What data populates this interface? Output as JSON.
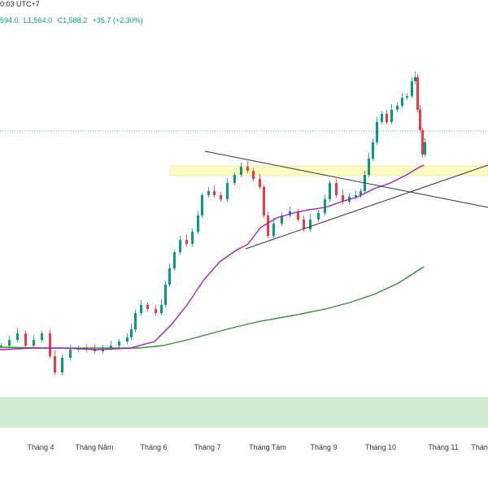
{
  "header": {
    "time_fragment": "0:03 UTC+7",
    "ohlc_high": "594.0",
    "ohlc_low": "L1,564.0",
    "ohlc_close": "C1,588.2",
    "ohlc_change": "+35.7 (+2.30%)"
  },
  "colors": {
    "up": "#089981",
    "down": "#f23645",
    "ma_short": "#9c27b0",
    "ma_long": "#388e3c",
    "supply_zone": "#fff9c4",
    "demand_zone": "#c8e6c9",
    "trendline": "#333333",
    "dotted_level": "#089981"
  },
  "chart_data": {
    "type": "candlestick",
    "x_axis_labels": [
      "Tháng 4",
      "Tháng Năm",
      "Tháng 6",
      "Tháng 7",
      "Tháng Tám",
      "Tháng 9",
      "Tháng 10",
      "Tháng 11",
      "Tháng"
    ],
    "last_close": 1588.2,
    "annotations": {
      "dotted_horizontal_level": true,
      "yellow_zone": true,
      "green_zone": true,
      "descending_trendline": true,
      "ascending_trendline": true
    },
    "series": [
      {
        "type": "moving_average",
        "color": "#9c27b0"
      },
      {
        "type": "moving_average",
        "color": "#388e3c"
      }
    ],
    "grid": false
  }
}
